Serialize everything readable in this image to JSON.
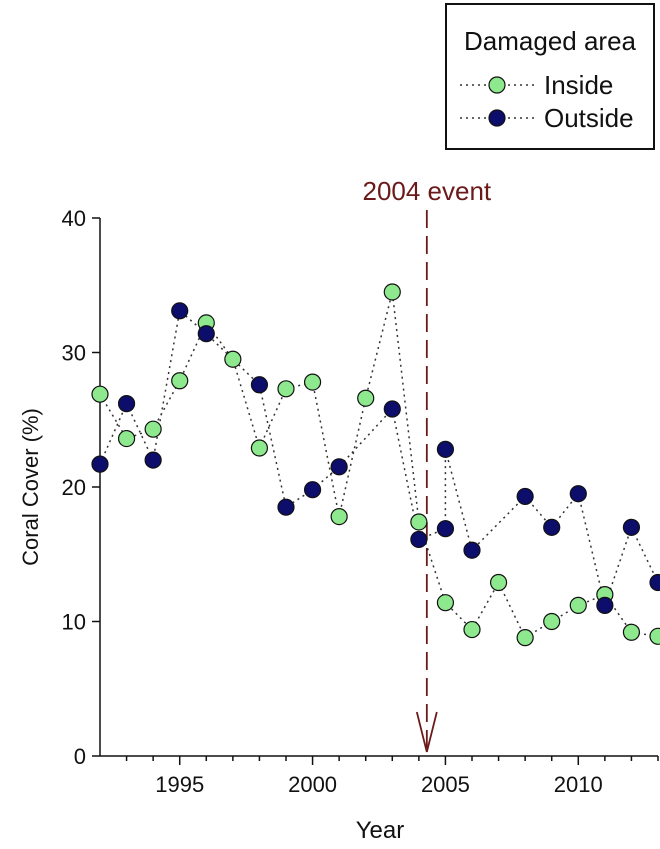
{
  "chart_data": {
    "type": "scatter",
    "xlabel": "Year",
    "ylabel": "Coral Cover (%)",
    "xlim": [
      1992,
      2013
    ],
    "ylim": [
      0,
      40
    ],
    "x_ticks": [
      "1995",
      "2000",
      "2005",
      "2010"
    ],
    "y_ticks": [
      "0",
      "10",
      "20",
      "30",
      "40"
    ],
    "legend": {
      "title": "Damaged area",
      "placement": "top-right"
    },
    "series": [
      {
        "name": "Inside",
        "color": "#8ee88e",
        "line_style": "dotted",
        "x": [
          1992,
          1993,
          1994,
          1995,
          1996,
          1997,
          1998,
          1999,
          2000,
          2001,
          2002,
          2003,
          2004,
          2005,
          2006,
          2007,
          2008,
          2009,
          2010,
          2011,
          2012,
          2013
        ],
        "values": [
          26.9,
          23.6,
          24.3,
          27.9,
          32.2,
          29.5,
          22.9,
          27.3,
          27.8,
          17.8,
          26.6,
          34.5,
          17.4,
          11.4,
          9.4,
          12.9,
          8.8,
          10.0,
          11.2,
          12.0,
          9.2,
          8.9
        ]
      },
      {
        "name": "Outside",
        "color": "#0d0d6b",
        "line_style": "dotted",
        "x": [
          1992,
          1993,
          1994,
          1995,
          1996,
          1997,
          1998,
          1999,
          2000,
          2001,
          2002,
          2003,
          2004,
          2005,
          2006,
          2007,
          2008,
          2009,
          2010,
          2011,
          2012,
          2013
        ],
        "values": [
          21.7,
          26.2,
          22.0,
          33.1,
          31.4,
          null,
          27.6,
          18.5,
          19.8,
          21.5,
          null,
          25.8,
          16.1,
          22.8,
          15.3,
          null,
          19.3,
          17.0,
          19.5,
          11.2,
          17.0,
          12.9
        ],
        "extra_points": [
          {
            "x": 2005,
            "y": 16.9
          }
        ]
      }
    ],
    "annotations": [
      {
        "text": "2004 event",
        "x": 2004.3,
        "style": "dashed-vertical-arrow",
        "color": "#6b1a1a"
      }
    ],
    "grid": false
  }
}
